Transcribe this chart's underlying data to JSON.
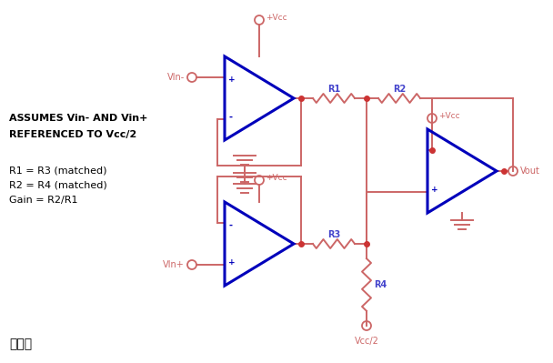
{
  "bg_color": "#ffffff",
  "line_color": "#cc6666",
  "op_amp_color": "#0000bb",
  "dot_color": "#cc3333",
  "blue_label_color": "#4444cc",
  "text_color": "#000000",
  "annotations_bold": [
    "ASSUMES Vin- AND Vin+",
    "REFERENCED TO Vcc/2"
  ],
  "annotations_normal": [
    "R1 = R3 (matched)",
    "R2 = R4 (matched)",
    "Gain = R2/R1"
  ],
  "title": "图十一",
  "figsize": [
    6.08,
    3.99
  ],
  "dpi": 100
}
